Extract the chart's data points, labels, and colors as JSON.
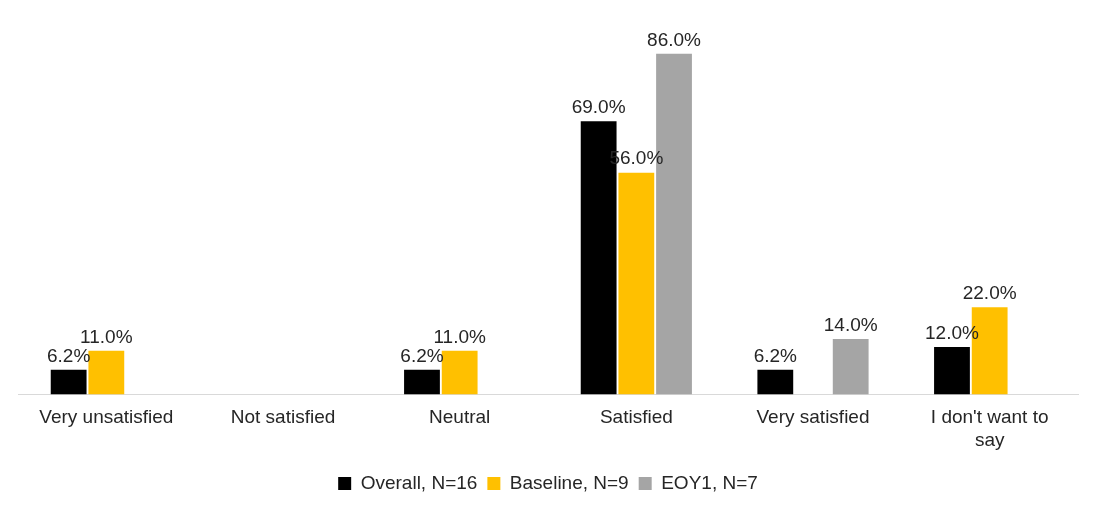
{
  "chart_data": {
    "type": "bar",
    "categories": [
      "Very unsatisfied",
      "Not satisfied",
      "Neutral",
      "Satisfied",
      "Very satisfied",
      "I don't want to say"
    ],
    "series": [
      {
        "name": "Overall, N=16",
        "color": "#000000",
        "values": [
          6.2,
          null,
          6.2,
          69.0,
          6.2,
          12.0
        ],
        "value_labels": [
          "6.2%",
          null,
          "6.2%",
          "69.0%",
          "6.2%",
          "12.0%"
        ]
      },
      {
        "name": "Baseline, N=9",
        "color": "#ffc000",
        "values": [
          11.0,
          null,
          11.0,
          56.0,
          null,
          22.0
        ],
        "value_labels": [
          "11.0%",
          null,
          "11.0%",
          "56.0%",
          null,
          "22.0%"
        ]
      },
      {
        "name": "EOY1, N=7",
        "color": "#a5a5a5",
        "values": [
          null,
          null,
          null,
          86.0,
          14.0,
          null
        ],
        "value_labels": [
          null,
          null,
          null,
          "86.0%",
          "14.0%",
          null
        ]
      }
    ],
    "legend": "bottom",
    "grid": false,
    "tick_labels": "x"
  }
}
